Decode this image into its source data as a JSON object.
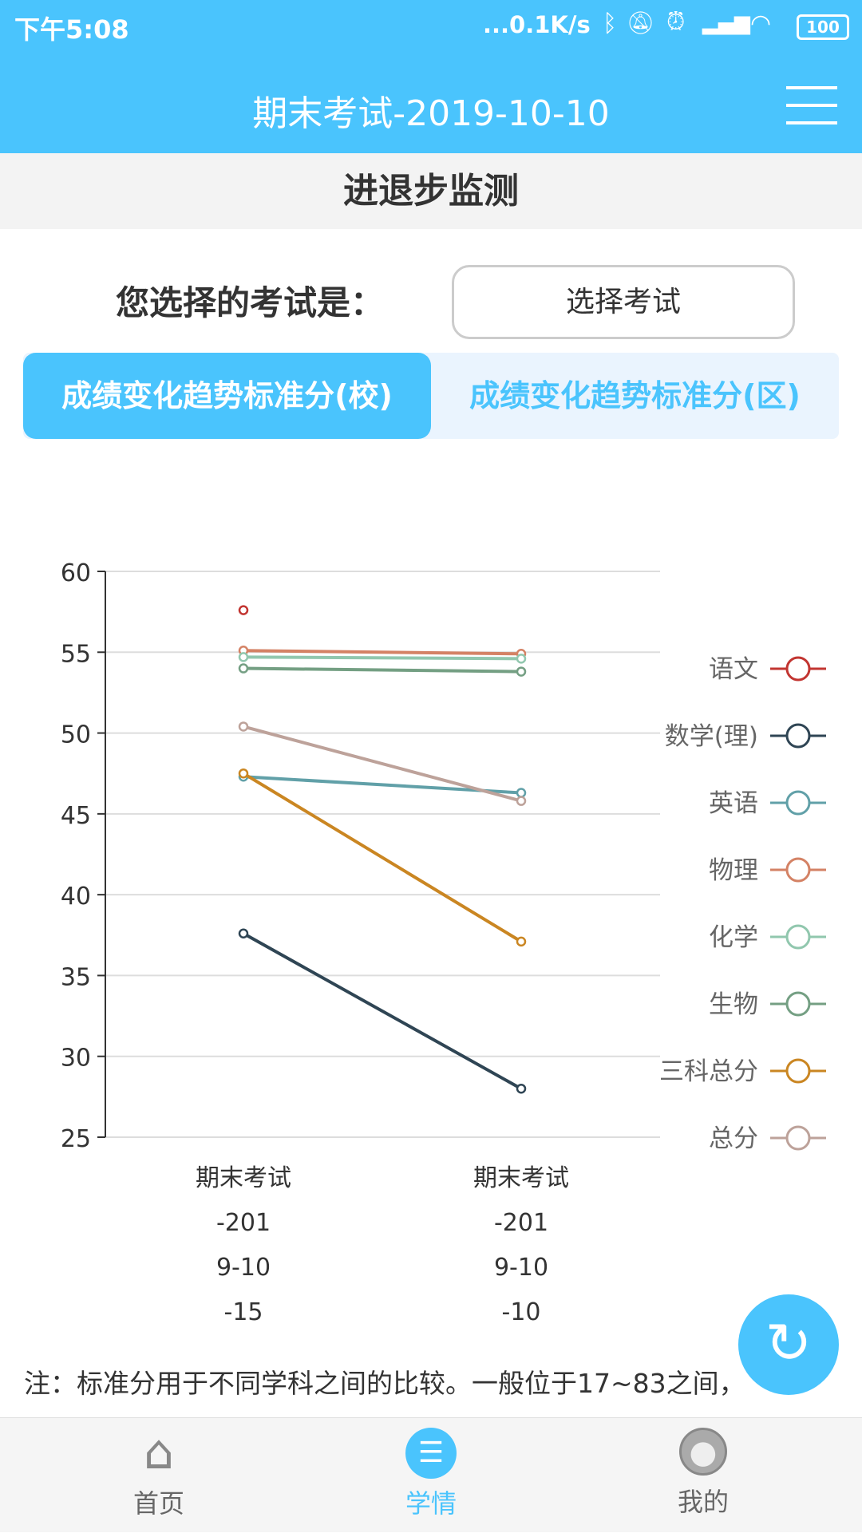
{
  "status_bar": {
    "time": "下午5:08",
    "net_speed": "...0.1K/s",
    "battery": "100"
  },
  "app_bar": {
    "title": "期末考试-2019-10-10",
    "menu_icon": "hamburger-icon"
  },
  "section_title": "进退步监测",
  "exam_select": {
    "label": "您选择的考试是：",
    "button": "选择考试"
  },
  "tabs": [
    {
      "label": "成绩变化趋势标准分(校)",
      "active": true
    },
    {
      "label": "成绩变化趋势标准分(区)",
      "active": false
    }
  ],
  "chart_data": {
    "type": "line",
    "categories": [
      "期末考试-2019-10-15",
      "期末考试-2019-10-10"
    ],
    "category_lines": [
      [
        "期末考试",
        "-201",
        "9-10",
        "-15"
      ],
      [
        "期末考试",
        "-201",
        "9-10",
        "-10"
      ]
    ],
    "ylim": [
      25,
      60
    ],
    "yticks": [
      60,
      55,
      50,
      45,
      40,
      35,
      30,
      25
    ],
    "grid": true,
    "legend_position": "right",
    "series": [
      {
        "name": "语文",
        "color": "#c23531",
        "values": [
          57.6,
          null
        ]
      },
      {
        "name": "数学(理)",
        "color": "#2f4554",
        "values": [
          37.6,
          28.0
        ]
      },
      {
        "name": "英语",
        "color": "#61a0a8",
        "values": [
          47.3,
          46.3
        ]
      },
      {
        "name": "物理",
        "color": "#d48265",
        "values": [
          55.1,
          54.9
        ]
      },
      {
        "name": "化学",
        "color": "#91c7ae",
        "values": [
          54.7,
          54.6
        ]
      },
      {
        "name": "生物",
        "color": "#749f83",
        "values": [
          54.0,
          53.8
        ]
      },
      {
        "name": "三科总分",
        "color": "#ca8622",
        "values": [
          47.5,
          37.1
        ]
      },
      {
        "name": "总分",
        "color": "#bda29a",
        "values": [
          50.4,
          45.8
        ]
      }
    ]
  },
  "note": "注：标准分用于不同学科之间的比较。一般位于17~83之间，",
  "fab_icon": "refresh-icon",
  "bottom_nav": [
    {
      "label": "首页",
      "icon": "home-icon"
    },
    {
      "label": "学情",
      "icon": "list-icon",
      "active": true
    },
    {
      "label": "我的",
      "icon": "user-icon"
    }
  ],
  "colors": {
    "accent": "#4ac4fd"
  }
}
